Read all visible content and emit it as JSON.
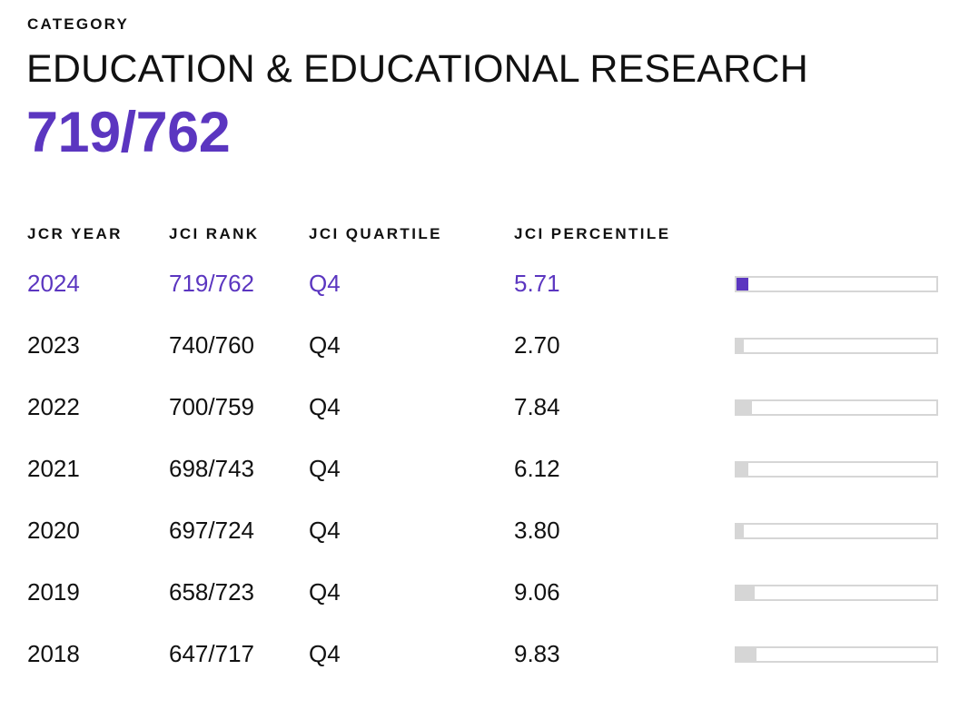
{
  "header": {
    "category_label": "CATEGORY",
    "category_name": "EDUCATION & EDUCATIONAL RESEARCH",
    "category_rank": "719/762"
  },
  "table": {
    "columns": [
      "JCR YEAR",
      "JCI RANK",
      "JCI QUARTILE",
      "JCI PERCENTILE"
    ],
    "rows": [
      {
        "year": "2024",
        "rank": "719/762",
        "quartile": "Q4",
        "percentile": "5.71",
        "current": true
      },
      {
        "year": "2023",
        "rank": "740/760",
        "quartile": "Q4",
        "percentile": "2.70",
        "current": false
      },
      {
        "year": "2022",
        "rank": "700/759",
        "quartile": "Q4",
        "percentile": "7.84",
        "current": false
      },
      {
        "year": "2021",
        "rank": "698/743",
        "quartile": "Q4",
        "percentile": "6.12",
        "current": false
      },
      {
        "year": "2020",
        "rank": "697/724",
        "quartile": "Q4",
        "percentile": "3.80",
        "current": false
      },
      {
        "year": "2019",
        "rank": "658/723",
        "quartile": "Q4",
        "percentile": "9.06",
        "current": false
      },
      {
        "year": "2018",
        "rank": "647/717",
        "quartile": "Q4",
        "percentile": "9.83",
        "current": false
      }
    ]
  },
  "colors": {
    "accent": "#5b36c0",
    "text": "#111111",
    "bar_track": "#d6d6d6",
    "bar_fill": "#d6d6d6"
  }
}
